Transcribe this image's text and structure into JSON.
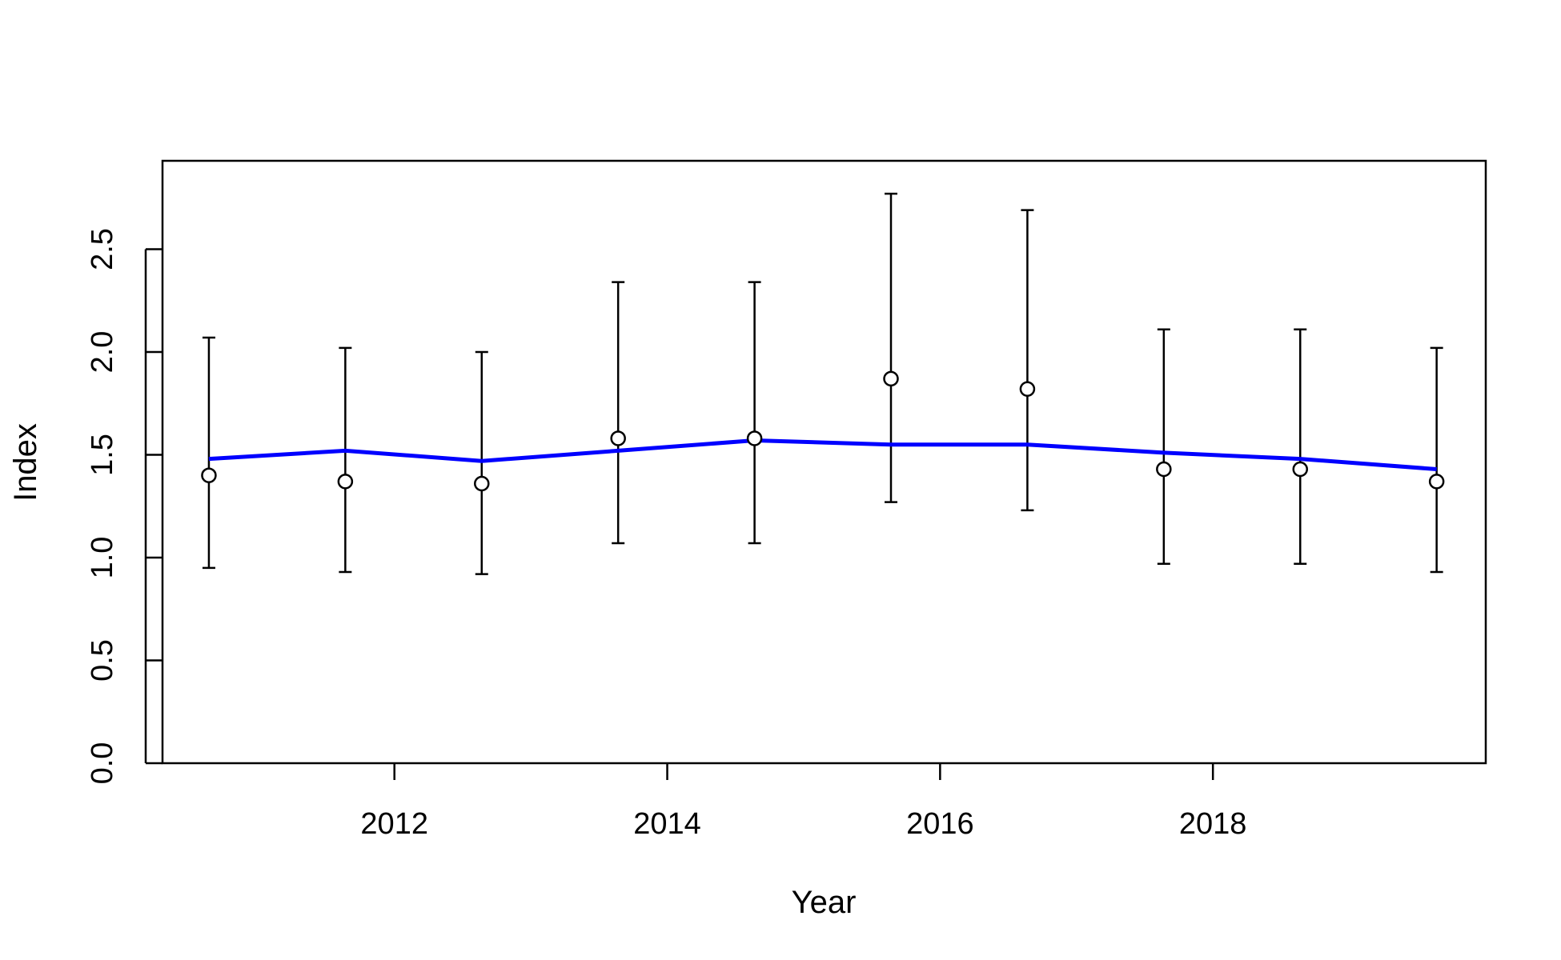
{
  "chart_data": {
    "type": "scatter",
    "title": "",
    "xlabel": "Year",
    "ylabel": "Index",
    "xlim": [
      2010.3,
      2020.0
    ],
    "ylim": [
      0,
      2.9
    ],
    "x_ticks": [
      2012,
      2014,
      2016,
      2018
    ],
    "x_tick_labels": [
      "2012",
      "2014",
      "2016",
      "2018"
    ],
    "y_ticks": [
      0,
      0.5,
      1,
      1.5,
      2,
      2.5
    ],
    "y_tick_labels": [
      "0.0",
      "0.5",
      "1.0",
      "1.5",
      "2.0",
      "2.5"
    ],
    "grid": false,
    "series": [
      {
        "kind": "points-with-error-bars",
        "color": "#000000",
        "x": [
          2010.64,
          2011.64,
          2012.64,
          2013.64,
          2014.64,
          2015.64,
          2016.64,
          2017.64,
          2018.64,
          2019.64
        ],
        "y": [
          1.4,
          1.37,
          1.36,
          1.58,
          1.58,
          1.87,
          1.82,
          1.43,
          1.43,
          1.37
        ],
        "lower": [
          0.95,
          0.93,
          0.92,
          1.07,
          1.07,
          1.27,
          1.23,
          0.97,
          0.97,
          0.93
        ],
        "upper": [
          2.07,
          2.02,
          2.0,
          2.34,
          2.34,
          2.77,
          2.69,
          2.11,
          2.11,
          2.02
        ]
      },
      {
        "kind": "line",
        "color": "#0000ff",
        "x": [
          2010.64,
          2011.64,
          2012.64,
          2013.64,
          2014.64,
          2015.64,
          2016.64,
          2017.64,
          2018.64,
          2019.64
        ],
        "y": [
          1.48,
          1.52,
          1.47,
          1.52,
          1.57,
          1.55,
          1.55,
          1.51,
          1.48,
          1.43
        ]
      }
    ]
  }
}
